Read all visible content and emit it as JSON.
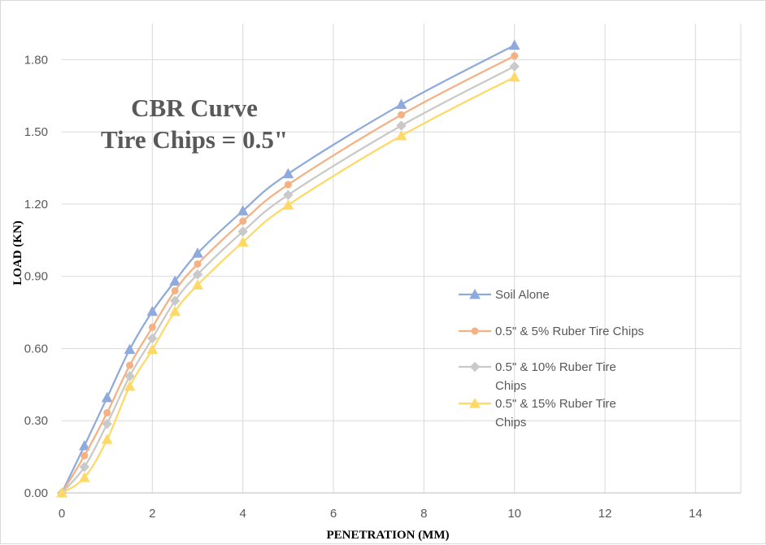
{
  "chart_data": {
    "type": "line",
    "title_lines": [
      "CBR Curve",
      "Tire Chips = 0.5\""
    ],
    "xlabel": "PENETRATION (MM)",
    "ylabel": "LOAD  (KN)",
    "xlim": [
      0,
      15
    ],
    "ylim": [
      0,
      1.95
    ],
    "xticks": [
      "0",
      "2",
      "4",
      "6",
      "8",
      "10",
      "12",
      "14"
    ],
    "xtick_values": [
      0,
      2,
      4,
      6,
      8,
      10,
      12,
      14
    ],
    "yticks": [
      "0.00",
      "0.30",
      "0.60",
      "0.90",
      "1.20",
      "1.50",
      "1.80"
    ],
    "ytick_values": [
      0,
      0.3,
      0.6,
      0.9,
      1.2,
      1.5,
      1.8
    ],
    "grid": true,
    "legend_position": "right",
    "x": [
      0,
      0.5,
      1,
      1.5,
      2,
      2.5,
      3,
      4,
      5,
      7.5,
      10
    ],
    "series": [
      {
        "name": "Soil Alone",
        "legend_lines": [
          "Soil Alone"
        ],
        "color": "#8faadc",
        "marker": "triangle",
        "values": [
          0,
          0.196,
          0.396,
          0.596,
          0.754,
          0.88,
          0.996,
          1.172,
          1.326,
          1.614,
          1.86
        ]
      },
      {
        "name": "0.5\" & 5% Ruber Tire Chips",
        "legend_lines": [
          "0.5\" & 5% Ruber Tire Chips"
        ],
        "color": "#f4b183",
        "marker": "circle",
        "values": [
          0,
          0.155,
          0.333,
          0.53,
          0.688,
          0.84,
          0.951,
          1.129,
          1.281,
          1.571,
          1.816
        ]
      },
      {
        "name": "0.5\" & 10% Ruber Tire Chips",
        "legend_lines": [
          "0.5\" & 10% Ruber Tire",
          "Chips"
        ],
        "color": "#c9c9c9",
        "marker": "diamond",
        "values": [
          0,
          0.108,
          0.287,
          0.485,
          0.642,
          0.798,
          0.908,
          1.086,
          1.238,
          1.526,
          1.772
        ]
      },
      {
        "name": "0.5\" & 15% Ruber Tire Chips",
        "legend_lines": [
          "0.5\" & 15% Ruber Tire",
          "Chips"
        ],
        "color": "#ffd966",
        "marker": "triangle",
        "values": [
          0,
          0.064,
          0.222,
          0.443,
          0.596,
          0.754,
          0.864,
          1.042,
          1.196,
          1.484,
          1.728
        ]
      }
    ]
  }
}
